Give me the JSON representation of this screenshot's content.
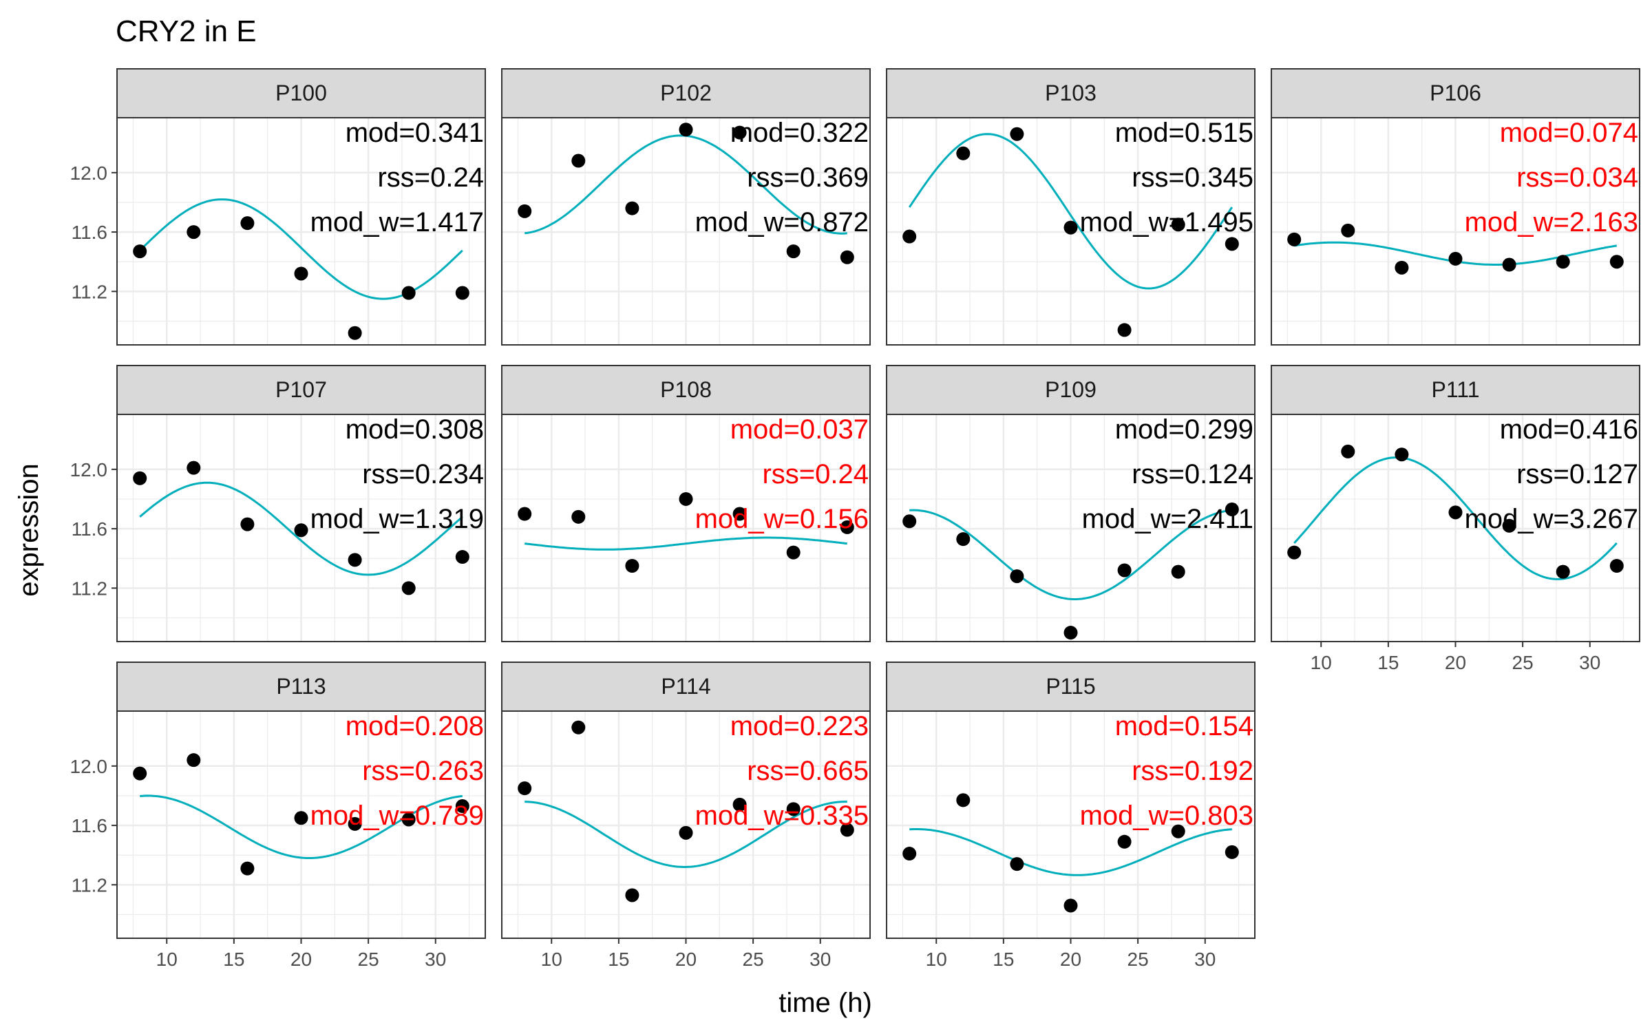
{
  "chart_data": {
    "type": "scatter",
    "title": "CRY2 in E",
    "xlabel": "time (h)",
    "ylabel": "expression",
    "xlim": [
      6.3,
      33.7
    ],
    "ylim": [
      10.84,
      12.37
    ],
    "x_ticks": [
      10,
      15,
      20,
      25,
      30
    ],
    "y_ticks": [
      11.2,
      11.6,
      12.0
    ],
    "colors": {
      "points": "#000000",
      "fit": "#00AFBB",
      "stat_ok": "#000000",
      "stat_flag": "#FF0000",
      "strip": "#D9D9D9",
      "grid": "#EBEBEB"
    },
    "panels": [
      {
        "name": "P100",
        "flag": false,
        "mod": "mod=0.341",
        "rss": "rss=0.24",
        "mod_w": "mod_w=1.417",
        "x": [
          8,
          12,
          16,
          20,
          24,
          28,
          32
        ],
        "y": [
          11.47,
          11.6,
          11.66,
          11.32,
          10.92,
          11.19,
          11.19
        ],
        "fit": {
          "mesor": 11.485,
          "amp": 0.335,
          "acro": 14.1
        }
      },
      {
        "name": "P102",
        "flag": false,
        "mod": "mod=0.322",
        "rss": "rss=0.369",
        "mod_w": "mod_w=0.872",
        "x": [
          8,
          12,
          16,
          20,
          24,
          28,
          32
        ],
        "y": [
          11.74,
          12.08,
          11.76,
          12.29,
          12.27,
          11.47,
          11.43
        ],
        "fit": {
          "mesor": 11.92,
          "amp": 0.33,
          "acro": 19.6
        }
      },
      {
        "name": "P103",
        "flag": false,
        "mod": "mod=0.515",
        "rss": "rss=0.345",
        "mod_w": "mod_w=1.495",
        "x": [
          8,
          12,
          16,
          20,
          24,
          28,
          32
        ],
        "y": [
          11.57,
          12.13,
          12.26,
          11.63,
          10.94,
          11.65,
          11.52
        ],
        "fit": {
          "mesor": 11.74,
          "amp": 0.52,
          "acro": 13.8
        }
      },
      {
        "name": "P106",
        "flag": true,
        "mod": "mod=0.074",
        "rss": "rss=0.034",
        "mod_w": "mod_w=2.163",
        "x": [
          8,
          12,
          16,
          20,
          24,
          28,
          32
        ],
        "y": [
          11.55,
          11.61,
          11.36,
          11.42,
          11.38,
          11.4,
          11.4
        ],
        "fit": {
          "mesor": 11.455,
          "amp": 0.075,
          "acro": 11.0
        }
      },
      {
        "name": "P107",
        "flag": false,
        "mod": "mod=0.308",
        "rss": "rss=0.234",
        "mod_w": "mod_w=1.319",
        "x": [
          8,
          12,
          16,
          20,
          24,
          28,
          32
        ],
        "y": [
          11.94,
          12.01,
          11.63,
          11.59,
          11.39,
          11.2,
          11.41
        ],
        "fit": {
          "mesor": 11.6,
          "amp": 0.31,
          "acro": 13.0
        }
      },
      {
        "name": "P108",
        "flag": true,
        "mod": "mod=0.037",
        "rss": "rss=0.24",
        "mod_w": "mod_w=0.156",
        "x": [
          8,
          12,
          16,
          20,
          24,
          28,
          32
        ],
        "y": [
          11.7,
          11.68,
          11.35,
          11.8,
          11.7,
          11.44,
          11.61
        ],
        "fit": {
          "mesor": 11.5,
          "amp": 0.04,
          "acro": 26.0
        }
      },
      {
        "name": "P109",
        "flag": false,
        "mod": "mod=0.299",
        "rss": "rss=0.124",
        "mod_w": "mod_w=2.411",
        "x": [
          8,
          12,
          16,
          20,
          24,
          28,
          32
        ],
        "y": [
          11.65,
          11.53,
          11.28,
          10.9,
          11.32,
          11.31,
          11.73
        ],
        "fit": {
          "mesor": 11.425,
          "amp": 0.3,
          "acro": 8.3
        }
      },
      {
        "name": "P111",
        "flag": false,
        "mod": "mod=0.416",
        "rss": "rss=0.127",
        "mod_w": "mod_w=3.267",
        "x": [
          8,
          12,
          16,
          20,
          24,
          28,
          32
        ],
        "y": [
          11.44,
          12.12,
          12.1,
          11.71,
          11.62,
          11.31,
          11.35
        ],
        "fit": {
          "mesor": 11.67,
          "amp": 0.41,
          "acro": 15.6
        }
      },
      {
        "name": "P113",
        "flag": true,
        "mod": "mod=0.208",
        "rss": "rss=0.263",
        "mod_w": "mod_w=0.789",
        "x": [
          8,
          12,
          16,
          20,
          24,
          28,
          32
        ],
        "y": [
          11.95,
          12.04,
          11.31,
          11.65,
          11.61,
          11.64,
          11.73
        ],
        "fit": {
          "mesor": 11.59,
          "amp": 0.21,
          "acro": 8.6
        }
      },
      {
        "name": "P114",
        "flag": true,
        "mod": "mod=0.223",
        "rss": "rss=0.665",
        "mod_w": "mod_w=0.335",
        "x": [
          8,
          12,
          16,
          20,
          24,
          28,
          32
        ],
        "y": [
          11.85,
          12.26,
          11.13,
          11.55,
          11.74,
          11.71,
          11.57
        ],
        "fit": {
          "mesor": 11.54,
          "amp": 0.22,
          "acro": 7.9
        }
      },
      {
        "name": "P115",
        "flag": true,
        "mod": "mod=0.154",
        "rss": "rss=0.192",
        "mod_w": "mod_w=0.803",
        "x": [
          8,
          12,
          16,
          20,
          24,
          28,
          32
        ],
        "y": [
          11.41,
          11.77,
          11.34,
          11.06,
          11.49,
          11.56,
          11.42
        ],
        "fit": {
          "mesor": 11.42,
          "amp": 0.155,
          "acro": 8.5
        }
      }
    ]
  }
}
